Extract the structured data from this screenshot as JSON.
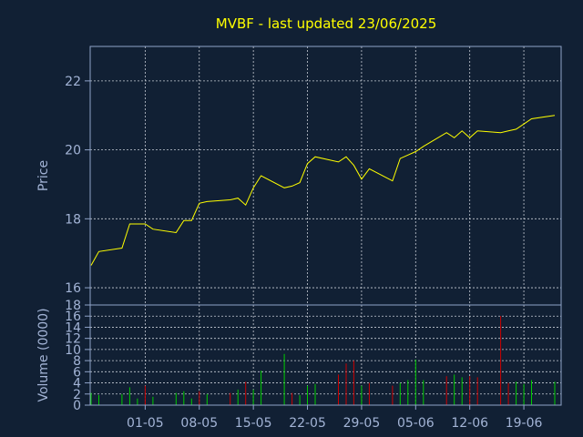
{
  "chart_data": [
    {
      "type": "line",
      "title": "MVBF - last updated 23/06/2025",
      "ylabel": "Price",
      "xlabel": "",
      "ylim": [
        15.5,
        23
      ],
      "yticks": [
        16,
        18,
        20,
        22
      ],
      "grid": true,
      "x_dates": [
        "2025-04-24",
        "2025-04-25",
        "2025-04-28",
        "2025-04-29",
        "2025-04-30",
        "2025-05-01",
        "2025-05-02",
        "2025-05-05",
        "2025-05-06",
        "2025-05-07",
        "2025-05-08",
        "2025-05-09",
        "2025-05-12",
        "2025-05-13",
        "2025-05-14",
        "2025-05-15",
        "2025-05-16",
        "2025-05-19",
        "2025-05-20",
        "2025-05-21",
        "2025-05-22",
        "2025-05-23",
        "2025-05-26",
        "2025-05-27",
        "2025-05-28",
        "2025-05-29",
        "2025-05-30",
        "2025-06-02",
        "2025-06-03",
        "2025-06-04",
        "2025-06-05",
        "2025-06-06",
        "2025-06-09",
        "2025-06-10",
        "2025-06-11",
        "2025-06-12",
        "2025-06-13",
        "2025-06-16",
        "2025-06-17",
        "2025-06-18",
        "2025-06-19",
        "2025-06-20",
        "2025-06-23"
      ],
      "series": [
        {
          "color": "#ffff00",
          "values": [
            16.65,
            17.05,
            17.15,
            17.85,
            17.85,
            17.85,
            17.7,
            17.6,
            17.95,
            17.95,
            18.45,
            18.5,
            18.55,
            18.6,
            18.4,
            18.9,
            19.25,
            18.9,
            18.95,
            19.05,
            19.6,
            19.8,
            19.65,
            19.8,
            19.55,
            19.15,
            19.45,
            19.1,
            19.75,
            19.85,
            19.95,
            20.1,
            20.5,
            20.35,
            20.55,
            20.35,
            20.55,
            20.5,
            20.55,
            20.6,
            20.75,
            20.9,
            21.0
          ]
        }
      ]
    },
    {
      "type": "bar",
      "ylabel": "Volume (0000)",
      "ylim": [
        0,
        18
      ],
      "yticks": [
        0,
        2,
        4,
        6,
        8,
        10,
        12,
        14,
        16,
        18
      ],
      "grid": true,
      "up_color": "#00cc00",
      "down_color": "#cc0000",
      "x_dates": [
        "2025-04-24",
        "2025-04-25",
        "2025-04-28",
        "2025-04-29",
        "2025-04-30",
        "2025-05-01",
        "2025-05-02",
        "2025-05-05",
        "2025-05-06",
        "2025-05-07",
        "2025-05-08",
        "2025-05-09",
        "2025-05-12",
        "2025-05-13",
        "2025-05-14",
        "2025-05-15",
        "2025-05-16",
        "2025-05-19",
        "2025-05-20",
        "2025-05-21",
        "2025-05-22",
        "2025-05-23",
        "2025-05-26",
        "2025-05-27",
        "2025-05-28",
        "2025-05-29",
        "2025-05-30",
        "2025-06-02",
        "2025-06-03",
        "2025-06-04",
        "2025-06-05",
        "2025-06-06",
        "2025-06-09",
        "2025-06-10",
        "2025-06-11",
        "2025-06-12",
        "2025-06-13",
        "2025-06-16",
        "2025-06-17",
        "2025-06-18",
        "2025-06-19",
        "2025-06-20",
        "2025-06-23"
      ],
      "values": [
        2.2,
        1.8,
        2.0,
        3.2,
        1.2,
        3.5,
        1.5,
        2.2,
        2.5,
        1.2,
        2.5,
        2.0,
        2.2,
        2.8,
        4.2,
        2.8,
        6.2,
        9.2,
        2.2,
        1.8,
        3.5,
        3.8,
        5.5,
        7.5,
        8.0,
        3.5,
        4.0,
        3.5,
        4.0,
        4.5,
        8.2,
        4.5,
        5.2,
        5.5,
        5.0,
        5.2,
        5.0,
        16.0,
        4.0,
        4.2,
        3.8,
        4.5,
        4.2
      ],
      "directions": [
        "up",
        "up",
        "up",
        "up",
        "up",
        "down",
        "up",
        "up",
        "up",
        "up",
        "down",
        "up",
        "down",
        "up",
        "down",
        "up",
        "up",
        "up",
        "down",
        "up",
        "up",
        "up",
        "down",
        "down",
        "down",
        "up",
        "down",
        "down",
        "up",
        "up",
        "up",
        "up",
        "down",
        "up",
        "up",
        "down",
        "down",
        "down",
        "down",
        "up",
        "up",
        "up",
        "up"
      ]
    }
  ],
  "x_tick_labels": [
    "01-05",
    "08-05",
    "15-05",
    "22-05",
    "29-05",
    "05-06",
    "12-06",
    "19-06"
  ],
  "x_tick_dates": [
    "2025-05-01",
    "2025-05-08",
    "2025-05-15",
    "2025-05-22",
    "2025-05-29",
    "2025-06-05",
    "2025-06-12",
    "2025-06-19"
  ]
}
